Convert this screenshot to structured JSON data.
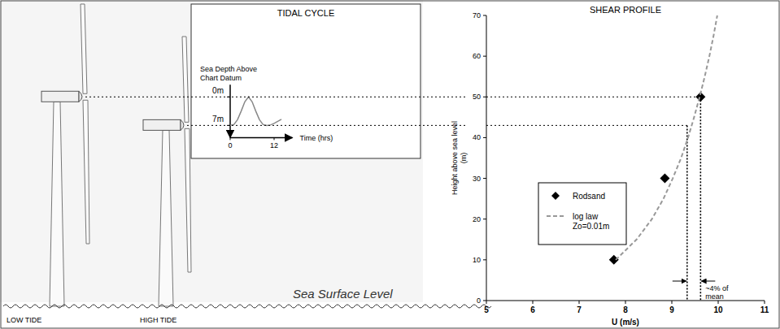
{
  "chart_data": [
    {
      "type": "scatter",
      "title": "SHEAR PROFILE",
      "x_label": "U (m/s)",
      "y_label": "Height above sea level (m)",
      "xlim": [
        5,
        11
      ],
      "xticks": [
        5,
        6,
        7,
        8,
        9,
        10,
        11
      ],
      "ylim": [
        0,
        70
      ],
      "yticks": [
        0,
        10,
        20,
        30,
        40,
        50,
        60,
        70
      ],
      "grid": false,
      "legend": "left",
      "series": [
        {
          "name": "Rodsand",
          "type": "scatter",
          "marker": "diamond",
          "color": "#000000",
          "x": [
            7.75,
            8.85,
            9.62
          ],
          "values": [
            10,
            30,
            50
          ]
        },
        {
          "name": "log law Zo=0.01m",
          "type": "line",
          "line_style": "dashed",
          "color": "#999999",
          "x": [
            7.79,
            8.24,
            8.57,
            8.82,
            9.02,
            9.2,
            9.35,
            9.48,
            9.6,
            9.71,
            9.81,
            9.9,
            9.98
          ],
          "values": [
            10,
            15,
            20,
            25,
            30,
            35,
            40,
            45,
            50,
            55,
            60,
            65,
            70
          ]
        }
      ],
      "reference_lines": [
        {
          "x": 9.62,
          "y": 50
        },
        {
          "x": 9.33,
          "y": 43
        }
      ],
      "annotations": [
        {
          "text": "~4% of mean"
        }
      ]
    },
    {
      "type": "line",
      "title": "TIDAL CYCLE",
      "x_label": "Time (hrs)",
      "y_label": "Sea Depth Above Chart Datum",
      "xlim": [
        0,
        17
      ],
      "xticks": [
        0,
        12
      ],
      "ylim": [
        10,
        -3
      ],
      "yticks": [
        {
          "value": 0,
          "label": "0m"
        },
        {
          "value": 7,
          "label": "7m"
        }
      ],
      "color": "#888888",
      "x": [
        0,
        1,
        2,
        3,
        4,
        5,
        6,
        7,
        8,
        9,
        10,
        11,
        12,
        13,
        14
      ],
      "values": [
        7,
        6.8,
        5.6,
        3.5,
        1.2,
        0,
        1.2,
        3.5,
        5.6,
        6.8,
        7,
        6.9,
        6.5,
        6,
        5.5
      ]
    }
  ],
  "illustration": {
    "turbines": [
      {
        "label": "LOW TIDE"
      },
      {
        "label": "HIGH TIDE"
      }
    ],
    "sea_label": "Sea Surface Level"
  }
}
